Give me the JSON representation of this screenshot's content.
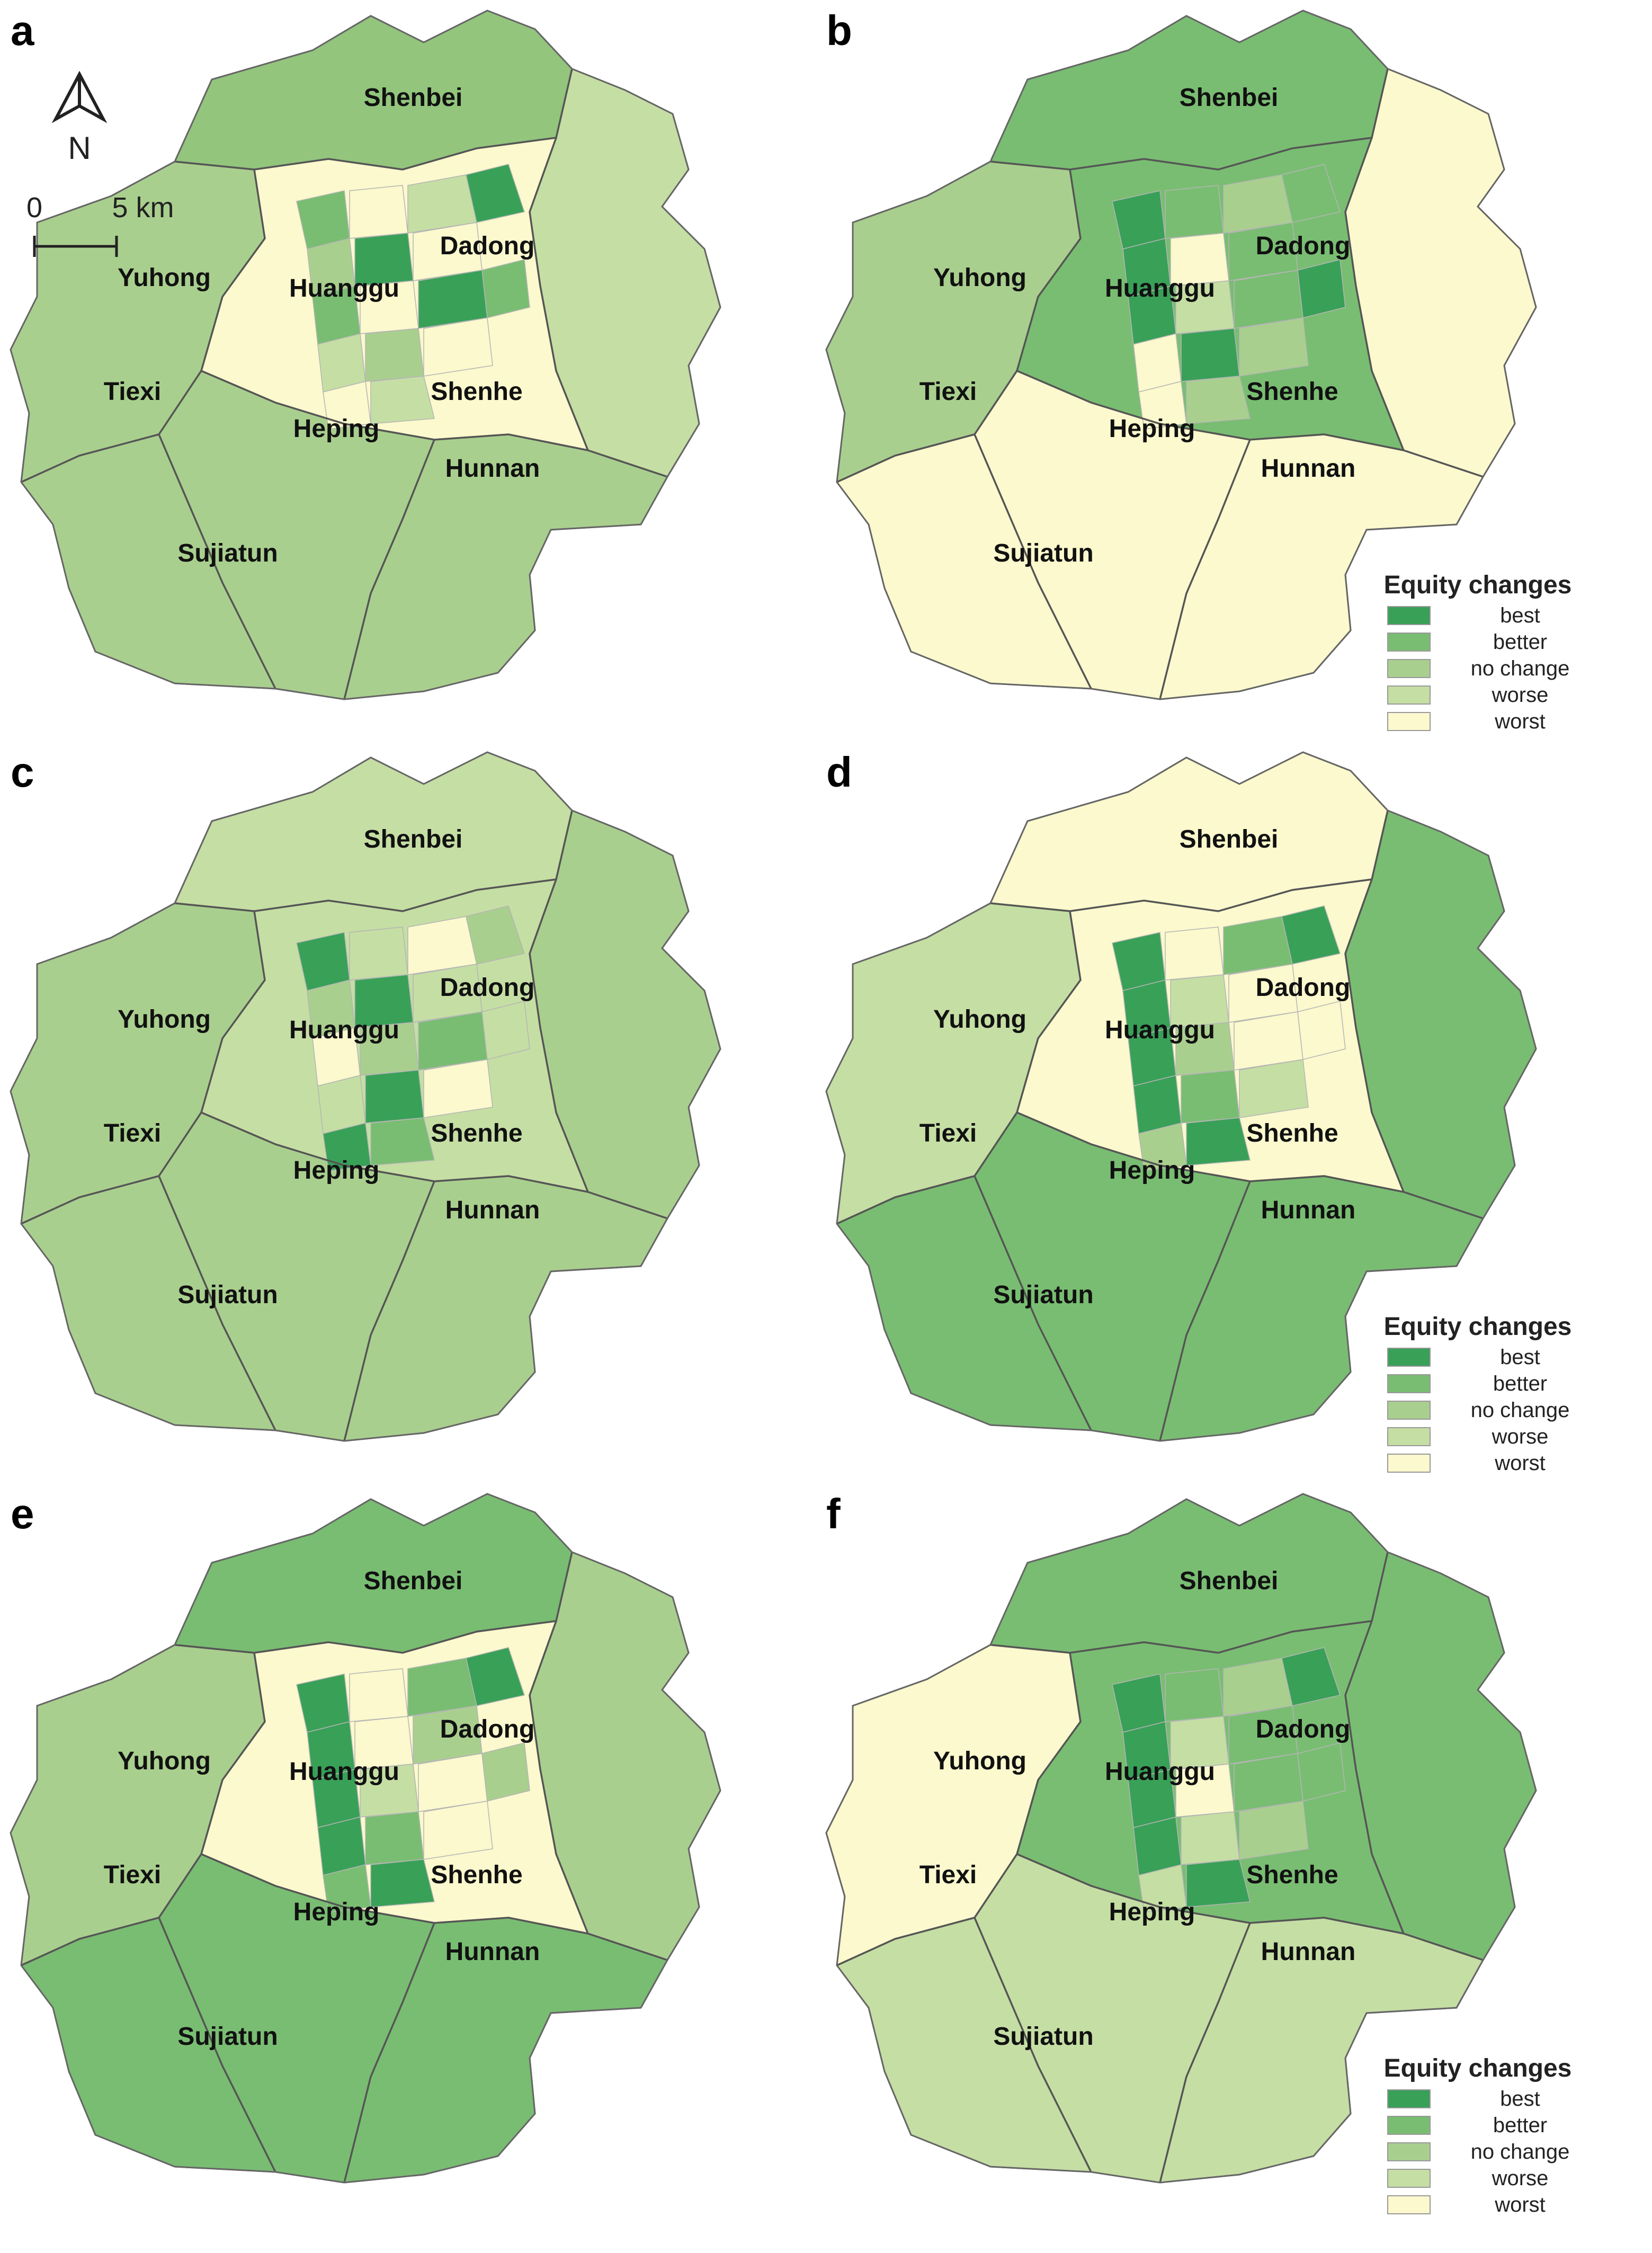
{
  "panels": [
    {
      "letter": "a",
      "has_legend": false,
      "has_north_scale": true,
      "base": "#a9cf8e",
      "north_hint": "#93c57d",
      "east_hint": "#c5dea4",
      "west_hint": "#a9cf8e",
      "south_hint": "#a9cf8e",
      "center_hint": "#fbf9cd",
      "cells": [
        "#79bd72",
        "#fbf9cd",
        "#c5dea4",
        "#a9cf8e",
        "#39a058",
        "#fbf9cd",
        "#79bd72",
        "#fbf9cd",
        "#39a058",
        "#c5dea4",
        "#a9cf8e",
        "#fbf9cd",
        "#39a058",
        "#79bd72",
        "#fbf9cd",
        "#c5dea4"
      ]
    },
    {
      "letter": "b",
      "has_legend": true,
      "has_north_scale": false,
      "base": "#a9cf8e",
      "north_hint": "#79bd72",
      "east_hint": "#fbf9cd",
      "west_hint": "#a9cf8e",
      "south_hint": "#fbf9cd",
      "center_hint": "#79bd72",
      "cells": [
        "#39a058",
        "#79bd72",
        "#a9cf8e",
        "#39a058",
        "#fbf9cd",
        "#79bd72",
        "#39a058",
        "#c5dea4",
        "#79bd72",
        "#fbf9cd",
        "#39a058",
        "#a9cf8e",
        "#79bd72",
        "#39a058",
        "#fbf9cd",
        "#a9cf8e"
      ]
    },
    {
      "letter": "c",
      "has_legend": false,
      "has_north_scale": false,
      "base": "#a9cf8e",
      "north_hint": "#c5dea4",
      "east_hint": "#a9cf8e",
      "west_hint": "#a9cf8e",
      "south_hint": "#a9cf8e",
      "center_hint": "#c5dea4",
      "cells": [
        "#39a058",
        "#c5dea4",
        "#fbf9cd",
        "#a9cf8e",
        "#39a058",
        "#c5dea4",
        "#fbf9cd",
        "#a9cf8e",
        "#79bd72",
        "#c5dea4",
        "#39a058",
        "#fbf9cd",
        "#a9cf8e",
        "#c5dea4",
        "#39a058",
        "#79bd72"
      ]
    },
    {
      "letter": "d",
      "has_legend": true,
      "has_north_scale": false,
      "base": "#c5dea4",
      "north_hint": "#fbf9cd",
      "east_hint": "#79bd72",
      "west_hint": "#c5dea4",
      "south_hint": "#79bd72",
      "center_hint": "#fbf9cd",
      "cells": [
        "#39a058",
        "#fbf9cd",
        "#79bd72",
        "#39a058",
        "#c5dea4",
        "#fbf9cd",
        "#39a058",
        "#a9cf8e",
        "#fbf9cd",
        "#39a058",
        "#79bd72",
        "#c5dea4",
        "#39a058",
        "#fbf9cd",
        "#a9cf8e",
        "#39a058"
      ]
    },
    {
      "letter": "e",
      "has_legend": false,
      "has_north_scale": false,
      "base": "#a9cf8e",
      "north_hint": "#79bd72",
      "east_hint": "#a9cf8e",
      "west_hint": "#a9cf8e",
      "south_hint": "#79bd72",
      "center_hint": "#fbf9cd",
      "cells": [
        "#39a058",
        "#fbf9cd",
        "#79bd72",
        "#39a058",
        "#fbf9cd",
        "#a9cf8e",
        "#39a058",
        "#c5dea4",
        "#fbf9cd",
        "#39a058",
        "#79bd72",
        "#fbf9cd",
        "#39a058",
        "#a9cf8e",
        "#79bd72",
        "#39a058"
      ]
    },
    {
      "letter": "f",
      "has_legend": true,
      "has_north_scale": false,
      "base": "#a9cf8e",
      "north_hint": "#79bd72",
      "east_hint": "#79bd72",
      "west_hint": "#fbf9cd",
      "south_hint": "#c5dea4",
      "center_hint": "#79bd72",
      "cells": [
        "#39a058",
        "#79bd72",
        "#a9cf8e",
        "#39a058",
        "#c5dea4",
        "#79bd72",
        "#39a058",
        "#fbf9cd",
        "#79bd72",
        "#39a058",
        "#c5dea4",
        "#a9cf8e",
        "#39a058",
        "#79bd72",
        "#c5dea4",
        "#39a058"
      ]
    }
  ],
  "district_labels": [
    "Shenbei",
    "Dadong",
    "Yuhong",
    "Huanggu",
    "Tiexi",
    "Shenhe",
    "Heping",
    "Hunnan",
    "Sujiatun"
  ],
  "legend": {
    "title": "Equity changes",
    "items": [
      {
        "label": "best",
        "color": "#39a058"
      },
      {
        "label": "better",
        "color": "#79bd72"
      },
      {
        "label": "no change",
        "color": "#a9cf8e"
      },
      {
        "label": "worse",
        "color": "#c5dea4"
      },
      {
        "label": "worst",
        "color": "#fbf9cd"
      }
    ]
  },
  "north_arrow": {
    "label": "N"
  },
  "scale_bar": {
    "start": "0",
    "end": "5 km"
  }
}
